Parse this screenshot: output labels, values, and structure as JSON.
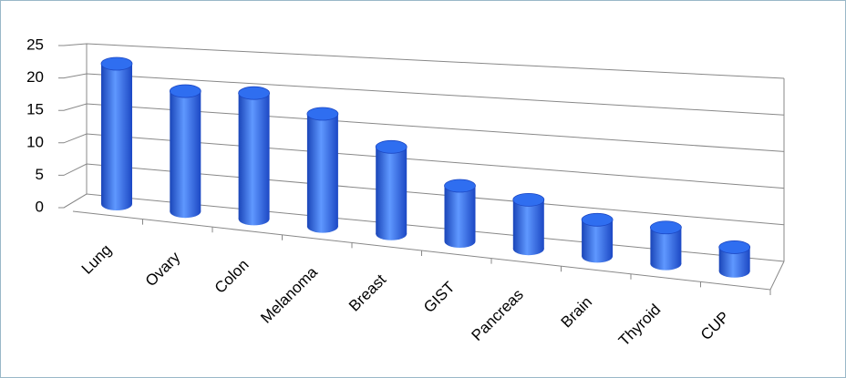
{
  "chart_data": {
    "type": "bar",
    "categories": [
      "Lung",
      "Ovary",
      "Colon",
      "Melanoma",
      "Breast",
      "GIST",
      "Pancreas",
      "Brain",
      "Thyroid",
      "CUP"
    ],
    "values": [
      22,
      19,
      20,
      18,
      14,
      9,
      8,
      6,
      6,
      4
    ],
    "color": "#2f6ef0",
    "ylim": [
      0,
      25
    ],
    "yticks": [
      0,
      5,
      10,
      15,
      20,
      25
    ],
    "grid": true
  }
}
